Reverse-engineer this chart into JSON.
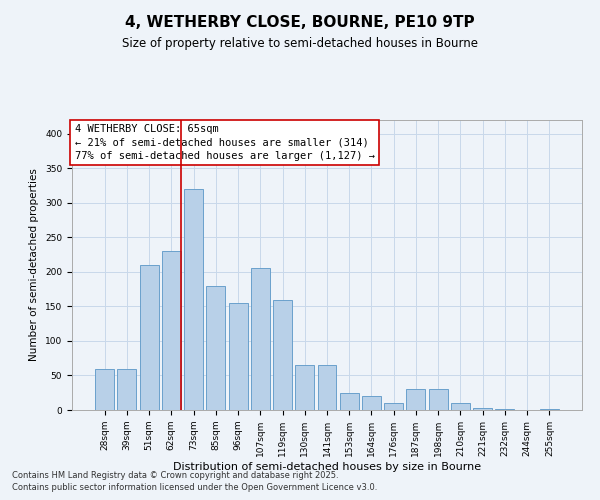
{
  "title": "4, WETHERBY CLOSE, BOURNE, PE10 9TP",
  "subtitle": "Size of property relative to semi-detached houses in Bourne",
  "xlabel": "Distribution of semi-detached houses by size in Bourne",
  "ylabel": "Number of semi-detached properties",
  "categories": [
    "28sqm",
    "39sqm",
    "51sqm",
    "62sqm",
    "73sqm",
    "85sqm",
    "96sqm",
    "107sqm",
    "119sqm",
    "130sqm",
    "141sqm",
    "153sqm",
    "164sqm",
    "176sqm",
    "187sqm",
    "198sqm",
    "210sqm",
    "221sqm",
    "232sqm",
    "244sqm",
    "255sqm"
  ],
  "values": [
    60,
    60,
    210,
    230,
    320,
    180,
    155,
    205,
    160,
    65,
    65,
    25,
    20,
    10,
    30,
    30,
    10,
    3,
    1,
    0,
    1
  ],
  "bar_color": "#b8d0e8",
  "bar_edge_color": "#6aa0cc",
  "grid_color": "#c8d8ea",
  "background_color": "#eef3f9",
  "annotation_box_color": "#ffffff",
  "annotation_border_color": "#cc0000",
  "vline_color": "#cc0000",
  "vline_x_index": 3,
  "annotation_title": "4 WETHERBY CLOSE: 65sqm",
  "annotation_line1": "← 21% of semi-detached houses are smaller (314)",
  "annotation_line2": "77% of semi-detached houses are larger (1,127) →",
  "footnote1": "Contains HM Land Registry data © Crown copyright and database right 2025.",
  "footnote2": "Contains public sector information licensed under the Open Government Licence v3.0.",
  "ylim": [
    0,
    420
  ],
  "yticks": [
    0,
    50,
    100,
    150,
    200,
    250,
    300,
    350,
    400
  ],
  "title_fontsize": 11,
  "subtitle_fontsize": 8.5,
  "annotation_fontsize": 7.5,
  "ylabel_fontsize": 7.5,
  "xlabel_fontsize": 8,
  "tick_fontsize": 6.5,
  "footnote_fontsize": 6
}
